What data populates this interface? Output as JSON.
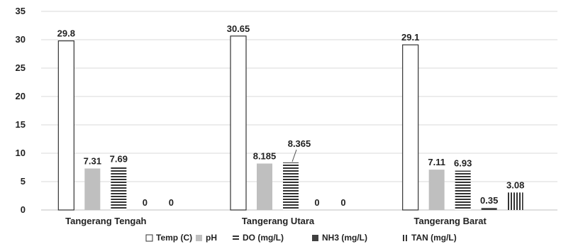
{
  "chart_data": {
    "type": "bar",
    "categories": [
      "Tangerang Tengah",
      "Tangerang Utara",
      "Tangerang Barat"
    ],
    "series": [
      {
        "name": "Temp (C)",
        "values": [
          29.8,
          30.65,
          29.1
        ],
        "labels": [
          "29.8",
          "30.65",
          "29.1"
        ],
        "pattern": "hollow"
      },
      {
        "name": "pH",
        "values": [
          7.31,
          8.185,
          7.11
        ],
        "labels": [
          "7.31",
          "8.185",
          "7.11"
        ],
        "pattern": "solid-gray"
      },
      {
        "name": "DO (mg/L)",
        "values": [
          7.69,
          8.365,
          6.93
        ],
        "labels": [
          "7.69",
          "8.365",
          "6.93"
        ],
        "pattern": "horizontal-lines"
      },
      {
        "name": "NH3 (mg/L)",
        "values": [
          0,
          0,
          0.35
        ],
        "labels": [
          "0",
          "0",
          "0.35"
        ],
        "pattern": "solid-dark"
      },
      {
        "name": "TAN (mg/L)",
        "values": [
          0,
          0,
          3.08
        ],
        "labels": [
          "0",
          "0",
          "3.08"
        ],
        "pattern": "vertical-lines"
      }
    ],
    "yticks": [
      "0",
      "5",
      "10",
      "15",
      "20",
      "25",
      "30",
      "35"
    ],
    "ylim": [
      0,
      35
    ],
    "grid": true,
    "legend_position": "bottom",
    "colors": {
      "grid": "#d9d9d9",
      "gray": "#bfbfbf",
      "dark": "#404040",
      "stroke": "#333333"
    }
  }
}
